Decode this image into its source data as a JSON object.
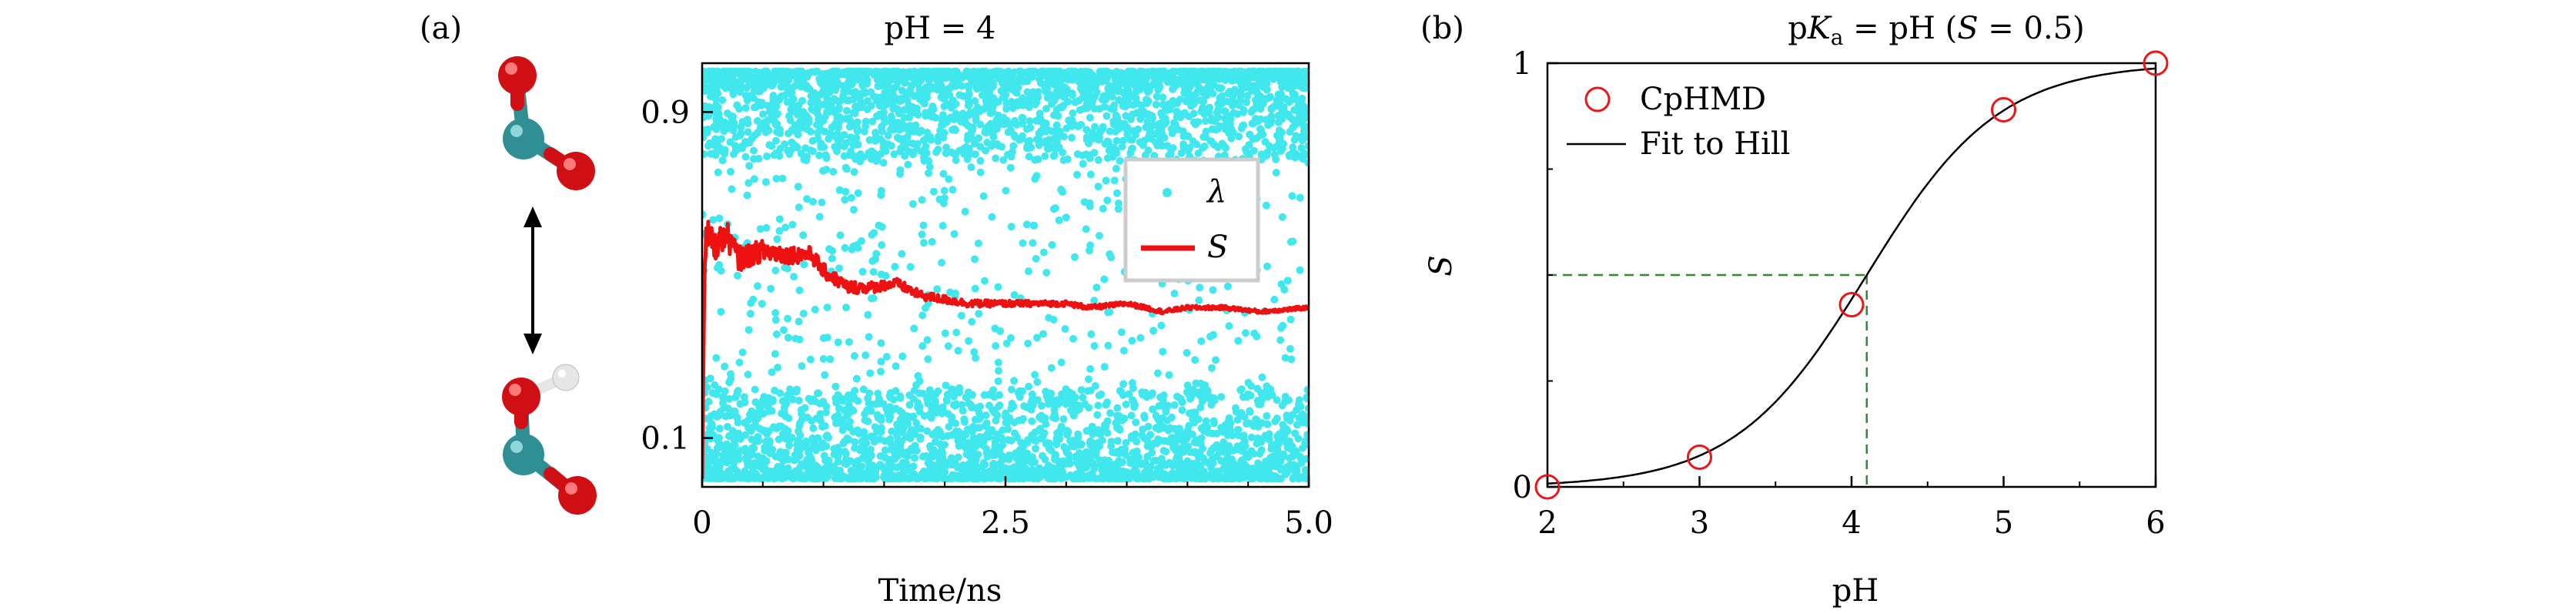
{
  "panel_a_label": "(a)",
  "panel_b_label": "(b)",
  "colors": {
    "lambda_points": "#40e8ee",
    "s_line": "#ee1111",
    "cphmd_marker": "#e81818",
    "hill_fit": "#000000",
    "guide_lines": "#2e8b2e",
    "carbon": "#2f8f95",
    "oxygen": "#d00f14",
    "hydrogen": "#e6e6e6"
  },
  "molecule_icons": [
    "carboxylate-icon",
    "double-arrow-icon",
    "carboxylic-acid-icon"
  ],
  "chart_data": [
    {
      "type": "scatter",
      "title_pre": "pH",
      "title_eq": " = ",
      "title_val": "4",
      "xlabel": "Time/ns",
      "ylabel": "",
      "xlim": [
        0,
        5.0
      ],
      "ylim": [
        -0.02,
        1.02
      ],
      "x_ticks": [
        0,
        2.5,
        5.0
      ],
      "x_tick_labels": [
        "0",
        "2.5",
        "5.0"
      ],
      "y_ticks": [
        0.1,
        0.9
      ],
      "y_tick_labels": [
        "0.1",
        "0.9"
      ],
      "grid": false,
      "legend_placement": "right",
      "series": [
        {
          "name": "λ",
          "kind": "scatter",
          "description_count_points": 5000,
          "distribution": "bimodal: dense near 0 and near 1, sparse in between"
        },
        {
          "name": "S",
          "kind": "line",
          "x": [
            0,
            0.02,
            0.05,
            0.1,
            0.2,
            0.3,
            0.5,
            0.7,
            0.9,
            1.0,
            1.2,
            1.4,
            1.6,
            1.8,
            2.0,
            2.2,
            2.5,
            2.8,
            3.0,
            3.2,
            3.5,
            3.8,
            4.0,
            4.3,
            4.6,
            5.0
          ],
          "y": [
            0.0,
            0.56,
            0.6,
            0.57,
            0.6,
            0.54,
            0.56,
            0.55,
            0.55,
            0.51,
            0.47,
            0.47,
            0.48,
            0.45,
            0.44,
            0.43,
            0.43,
            0.43,
            0.43,
            0.42,
            0.43,
            0.41,
            0.42,
            0.42,
            0.41,
            0.42
          ]
        }
      ]
    },
    {
      "type": "scatter",
      "title_pre": "p",
      "title_K": "K",
      "title_sub": "a",
      "title_mid": " = pH (",
      "title_S": "S",
      "title_post": " = 0.5)",
      "xlabel": "pH",
      "ylabel": "S",
      "xlim": [
        2,
        6
      ],
      "ylim": [
        0,
        1
      ],
      "x_ticks": [
        2,
        3,
        4,
        5,
        6
      ],
      "x_tick_labels": [
        "2",
        "3",
        "4",
        "5",
        "6"
      ],
      "y_ticks": [
        0,
        1
      ],
      "y_tick_labels": [
        "0",
        "1"
      ],
      "grid": false,
      "legend_placement": "top-left",
      "series": [
        {
          "name": "CpHMD",
          "kind": "markers",
          "x": [
            2,
            3,
            4,
            5,
            6
          ],
          "y": [
            0.0,
            0.07,
            0.43,
            0.89,
            1.0
          ]
        },
        {
          "name": "Fit to Hill",
          "kind": "line",
          "pKa": 4.1,
          "hill_n": 1.0
        }
      ],
      "guide_point": {
        "x": 4.1,
        "y": 0.5
      }
    }
  ]
}
